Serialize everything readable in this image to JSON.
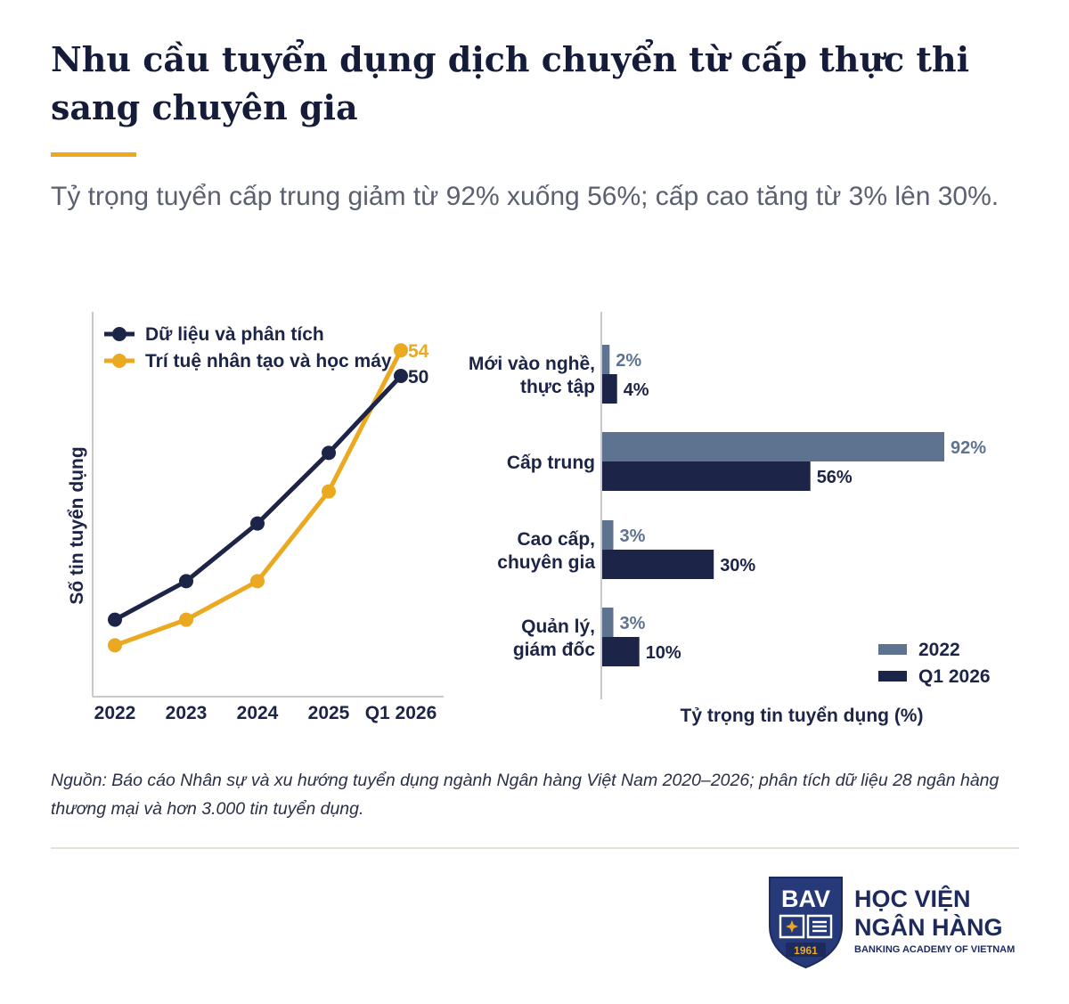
{
  "header": {
    "title": "Nhu cầu tuyển dụng dịch chuyển từ cấp thực thi sang chuyên gia",
    "subtitle": "Tỷ trọng tuyển cấp trung giảm từ 92% xuống 56%; cấp cao tăng từ 3% lên 30%."
  },
  "colors": {
    "navy": "#1c2447",
    "gold": "#eaa920",
    "slate": "#5e7390",
    "text_gray": "#5b6070"
  },
  "chart_data": [
    {
      "type": "line",
      "title": "",
      "xlabel": "",
      "ylabel": "Số tin tuyển dụng",
      "categories": [
        "2022",
        "2023",
        "2024",
        "2025",
        "Q1 2026"
      ],
      "ylim": [
        0,
        60
      ],
      "legend": "top-left",
      "series": [
        {
          "name": "Dữ liệu và phân tích",
          "color": "#1c2447",
          "values": [
            12,
            18,
            27,
            38,
            50
          ],
          "end_label": "50"
        },
        {
          "name": "Trí tuệ nhân tạo và học máy",
          "color": "#eaa920",
          "values": [
            8,
            12,
            18,
            32,
            54
          ],
          "end_label": "54"
        }
      ]
    },
    {
      "type": "bar",
      "orientation": "horizontal",
      "title": "",
      "xlabel": "Tỷ trọng tin tuyển dụng (%)",
      "xlim": [
        0,
        100
      ],
      "legend": "bottom-right",
      "categories": [
        [
          "Mới vào nghề,",
          "thực tập"
        ],
        [
          "Cấp trung"
        ],
        [
          "Cao cấp,",
          "chuyên gia"
        ],
        [
          "Quản lý,",
          "giám đốc"
        ]
      ],
      "series": [
        {
          "name": "2022",
          "color": "#5e7390",
          "values": [
            2,
            92,
            3,
            3
          ],
          "labels": [
            "2%",
            "92%",
            "3%",
            "3%"
          ]
        },
        {
          "name": "Q1 2026",
          "color": "#1c2447",
          "values": [
            4,
            56,
            30,
            10
          ],
          "labels": [
            "4%",
            "56%",
            "30%",
            "10%"
          ]
        }
      ]
    }
  ],
  "source": "Nguồn: Báo cáo Nhân sự và xu hướng tuyển dụng ngành Ngân hàng Việt Nam 2020–2026; phân tích dữ liệu 28 ngân hàng thương mại và hơn 3.000 tin tuyển dụng.",
  "logo": {
    "abbr": "BAV",
    "year": "1961",
    "name_line1": "HỌC VIỆN",
    "name_line2": "NGÂN HÀNG",
    "name_en": "BANKING ACADEMY OF VIETNAM"
  }
}
